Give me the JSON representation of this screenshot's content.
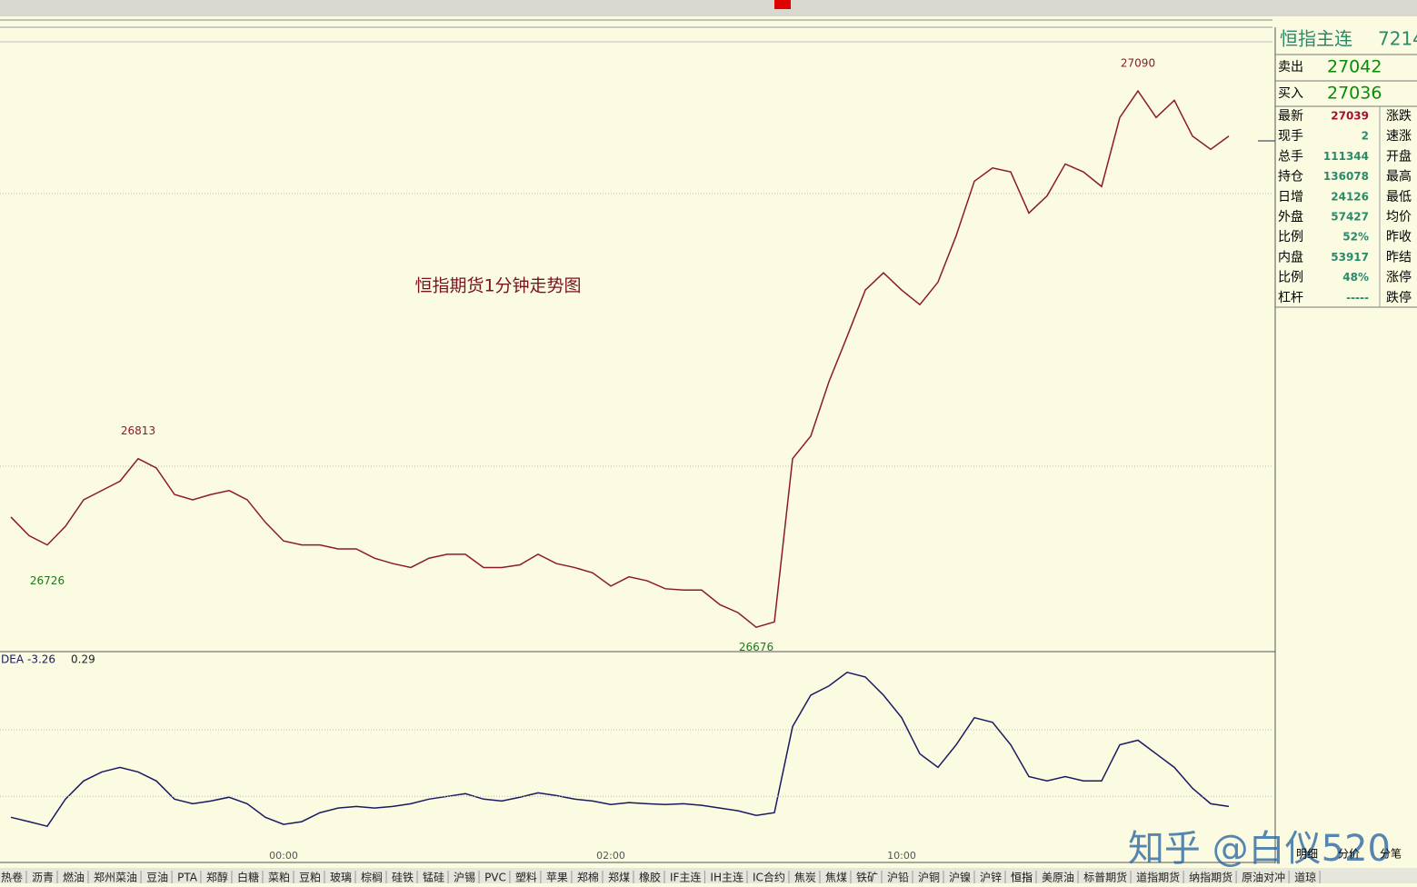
{
  "chart_data": [
    {
      "type": "line",
      "title": "恒指期货1分钟走势图",
      "categories": [
        null,
        null,
        null,
        null,
        null,
        null,
        null,
        null,
        null,
        null,
        null,
        null,
        null,
        null,
        null,
        "00:00",
        null,
        null,
        null,
        null,
        null,
        null,
        null,
        null,
        null,
        null,
        null,
        null,
        null,
        null,
        null,
        null,
        null,
        "02:00",
        null,
        null,
        null,
        null,
        null,
        null,
        null,
        null,
        null,
        null,
        null,
        null,
        null,
        null,
        null,
        "10:00",
        null,
        null,
        null,
        null,
        null,
        null,
        null,
        null,
        null,
        null,
        null,
        null,
        null,
        null,
        null,
        null,
        null,
        null
      ],
      "series": [
        {
          "color": "#8b1a2e",
          "values": [
            26762,
            26748,
            26741,
            26755,
            26775,
            26782,
            26789,
            26806,
            26799,
            26779,
            26775,
            26779,
            26782,
            26775,
            26758,
            26744,
            26741,
            26741,
            26738,
            26738,
            26731,
            26727,
            26724,
            26731,
            26734,
            26734,
            26724,
            26724,
            26726,
            26734,
            26727,
            26724,
            26720,
            26710,
            26717,
            26714,
            26708,
            26707,
            26707,
            26696,
            26690,
            26679,
            26683,
            26806,
            26823,
            26864,
            26898,
            26933,
            26946,
            26933,
            26922,
            26939,
            26974,
            27015,
            27025,
            27022,
            26991,
            27004,
            27028,
            27022,
            27011,
            27063,
            27083,
            27063,
            27076,
            27049,
            27039,
            27049
          ]
        }
      ],
      "ylim": [
        26662,
        27131
      ],
      "annotations": [
        {
          "value": 27090,
          "index": 62
        },
        {
          "value": 26813,
          "index": 7
        },
        {
          "value": 26726,
          "index": 2
        },
        {
          "value": 26676,
          "index": 41
        }
      ]
    },
    {
      "type": "line",
      "indicator_label": "DEA",
      "indicator_values": [
        -3.26,
        0.29
      ],
      "series": [
        {
          "color": "#1a1a60",
          "values": [
            -7.7,
            -9.3,
            -11,
            -1,
            5.7,
            9,
            10.7,
            9,
            5.7,
            -1,
            -2.7,
            -1.7,
            -0.3,
            -2.7,
            -7.7,
            -10.3,
            -9.3,
            -6,
            -4.3,
            -3.7,
            -4.3,
            -3.7,
            -2.7,
            -1,
            0,
            1,
            -1,
            -1.7,
            -0.3,
            1.3,
            0.3,
            -1,
            -1.7,
            -3,
            -2.3,
            -2.7,
            -3,
            -2.7,
            -3.3,
            -4.3,
            -5.3,
            -7,
            -6,
            25.7,
            37.3,
            40.7,
            45.7,
            44,
            37.3,
            29,
            15.7,
            10.7,
            19,
            29,
            27.3,
            19,
            7.3,
            5.7,
            7.3,
            5.7,
            5.7,
            19,
            20.7,
            15.7,
            10.7,
            3,
            -2.7,
            -3.7
          ]
        }
      ],
      "ylim": [
        -24,
        53
      ]
    }
  ],
  "quote_panel": {
    "title": "恒指主连",
    "code": "7214",
    "ask": {
      "label": "卖出",
      "value": 27042
    },
    "bid": {
      "label": "买入",
      "value": 27036
    },
    "rows": [
      {
        "label": "最新",
        "value": 27039,
        "right": "涨跌"
      },
      {
        "label": "现手",
        "value": 2,
        "right": "速涨"
      },
      {
        "label": "总手",
        "value": 111344,
        "right": "开盘"
      },
      {
        "label": "持仓",
        "value": 136078,
        "right": "最高"
      },
      {
        "label": "日增",
        "value": 24126,
        "right": "最低"
      },
      {
        "label": "外盘",
        "value": 57427,
        "right": "均价"
      },
      {
        "label": "比例",
        "value": "52%",
        "right": "昨收"
      },
      {
        "label": "内盘",
        "value": 53917,
        "right": "昨结"
      },
      {
        "label": "比例",
        "value": "48%",
        "right": "涨停"
      },
      {
        "label": "杠杆",
        "value": "-----",
        "right": "跌停"
      }
    ]
  },
  "tabs": [
    "明细",
    "分价",
    "分笔"
  ],
  "instruments": [
    "热卷",
    "沥青",
    "燃油",
    "郑州菜油",
    "豆油",
    "PTA",
    "郑醇",
    "白糖",
    "菜粕",
    "豆粕",
    "玻璃",
    "棕榈",
    "硅铁",
    "锰硅",
    "沪锡",
    "PVC",
    "塑料",
    "苹果",
    "郑棉",
    "郑煤",
    "橡胶",
    "IF主连",
    "IH主连",
    "IC合约",
    "焦炭",
    "焦煤",
    "铁矿",
    "沪铅",
    "沪铜",
    "沪镍",
    "沪锌",
    "恒指",
    "美原油",
    "标普期货",
    "道指期货",
    "纳指期货",
    "原油对冲",
    "道琼"
  ],
  "watermark": "知乎 @白仪520"
}
